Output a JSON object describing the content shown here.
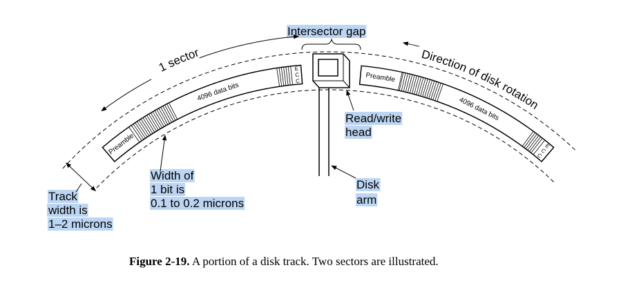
{
  "intersector_gap": "Intersector gap",
  "sector_span": "1 sector",
  "rotation": "Direction of disk rotation",
  "sectors": [
    {
      "preamble": "Preamble",
      "data": "4096 data bits",
      "ecc": "ECC"
    },
    {
      "preamble": "Preamble",
      "data": "4096 data bits",
      "ecc": "ECC"
    }
  ],
  "read_write_head": [
    "Read/write",
    "head"
  ],
  "disk_arm": [
    "Disk",
    "arm"
  ],
  "bit_width": [
    "Width of",
    "1 bit is",
    "0.1 to 0.2 microns"
  ],
  "track_width": [
    "Track",
    "width is",
    "1–2 microns"
  ],
  "caption": {
    "label": "Figure 2-19.",
    "text": "A portion of a disk track. Two sectors are illustrated."
  }
}
